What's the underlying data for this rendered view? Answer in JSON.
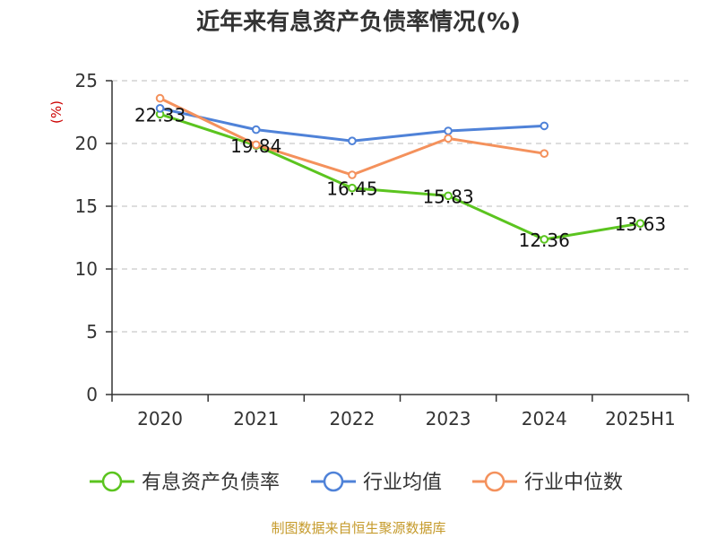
{
  "chart_data": {
    "type": "line",
    "title": "近年来有息资产负债率情况(%)",
    "y_unit": "(%)",
    "categories": [
      "2020",
      "2021",
      "2022",
      "2023",
      "2024",
      "2025H1"
    ],
    "ylim": [
      0,
      25
    ],
    "yticks": [
      "0",
      "5",
      "10",
      "15",
      "20",
      "25"
    ],
    "grid": true,
    "legend_position": "bottom",
    "series": [
      {
        "name": "有息资产负债率",
        "color": "#5bc41f",
        "values": [
          22.33,
          19.84,
          16.45,
          15.83,
          12.36,
          13.63
        ],
        "labels": [
          "22.33",
          "19.84",
          "16.45",
          "15.83",
          "12.36",
          "13.63"
        ]
      },
      {
        "name": "行业均值",
        "color": "#4f82d8",
        "values": [
          22.8,
          21.1,
          20.2,
          21.0,
          21.4,
          null
        ]
      },
      {
        "name": "行业中位数",
        "color": "#f4915c",
        "values": [
          23.6,
          19.9,
          17.5,
          20.4,
          19.2,
          null
        ]
      }
    ]
  },
  "source": "制图数据来自恒生聚源数据库"
}
